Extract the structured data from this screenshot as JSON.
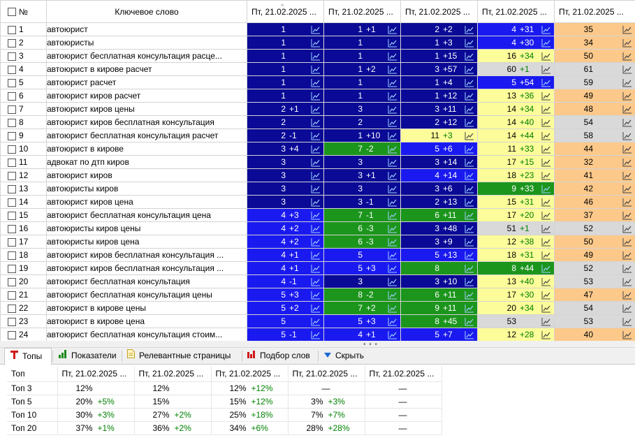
{
  "grid": {
    "header": {
      "num": "№",
      "keyword": "Ключевое слово",
      "dates": [
        "Пт, 21.02.2025 ...",
        "Пт, 21.02.2025 ...",
        "Пт, 21.02.2025 ...",
        "Пт, 21.02.2025 ...",
        "Пт, 21.02.2025 ..."
      ],
      "sort_indicator": "^"
    },
    "colors": {
      "navy": "#0a0a96",
      "blue": "#1a1af0",
      "green": "#1c951c",
      "yellow": "#fcfc9a",
      "gray": "#d9d9d9",
      "orange": "#fcc98b"
    },
    "rows": [
      {
        "n": "1",
        "kw": "автоюрист",
        "cells": [
          [
            "1",
            "",
            "navy"
          ],
          [
            "1",
            "+1",
            "navy"
          ],
          [
            "2",
            "+2",
            "navy"
          ],
          [
            "4",
            "+31",
            "blue"
          ],
          [
            "35",
            "",
            "orange"
          ]
        ]
      },
      {
        "n": "2",
        "kw": "автоюристы",
        "cells": [
          [
            "1",
            "",
            "navy"
          ],
          [
            "1",
            "",
            "navy"
          ],
          [
            "1",
            "+3",
            "navy"
          ],
          [
            "4",
            "+30",
            "blue"
          ],
          [
            "34",
            "",
            "orange"
          ]
        ]
      },
      {
        "n": "3",
        "kw": "автоюрист  бесплатная консультация расце...",
        "cells": [
          [
            "1",
            "",
            "navy"
          ],
          [
            "1",
            "",
            "navy"
          ],
          [
            "1",
            "+15",
            "navy"
          ],
          [
            "16",
            "+34",
            "yellow"
          ],
          [
            "50",
            "",
            "orange"
          ]
        ]
      },
      {
        "n": "4",
        "kw": "автоюрист в кирове расчет",
        "cells": [
          [
            "1",
            "",
            "navy"
          ],
          [
            "1",
            "+2",
            "navy"
          ],
          [
            "3",
            "+57",
            "navy"
          ],
          [
            "60",
            "+1",
            "gray"
          ],
          [
            "61",
            "",
            "gray"
          ]
        ]
      },
      {
        "n": "5",
        "kw": "автоюрист расчет",
        "cells": [
          [
            "1",
            "",
            "navy"
          ],
          [
            "1",
            "",
            "navy"
          ],
          [
            "1",
            "+4",
            "navy"
          ],
          [
            "5",
            "+54",
            "blue"
          ],
          [
            "59",
            "",
            "gray"
          ]
        ]
      },
      {
        "n": "6",
        "kw": "автоюрист киров расчет",
        "cells": [
          [
            "1",
            "",
            "navy"
          ],
          [
            "1",
            "",
            "navy"
          ],
          [
            "1",
            "+12",
            "navy"
          ],
          [
            "13",
            "+36",
            "yellow"
          ],
          [
            "49",
            "",
            "orange"
          ]
        ]
      },
      {
        "n": "7",
        "kw": "автоюрист киров цены",
        "cells": [
          [
            "2",
            "+1",
            "navy"
          ],
          [
            "3",
            "",
            "navy"
          ],
          [
            "3",
            "+11",
            "navy"
          ],
          [
            "14",
            "+34",
            "yellow"
          ],
          [
            "48",
            "",
            "orange"
          ]
        ]
      },
      {
        "n": "8",
        "kw": "автоюрист киров бесплатная консультация",
        "cells": [
          [
            "2",
            "",
            "navy"
          ],
          [
            "2",
            "",
            "navy"
          ],
          [
            "2",
            "+12",
            "navy"
          ],
          [
            "14",
            "+40",
            "yellow"
          ],
          [
            "54",
            "",
            "gray"
          ]
        ]
      },
      {
        "n": "9",
        "kw": "автоюрист  бесплатная консультация расчет",
        "cells": [
          [
            "2",
            "-1",
            "navy"
          ],
          [
            "1",
            "+10",
            "navy"
          ],
          [
            "11",
            "+3",
            "yellow"
          ],
          [
            "14",
            "+44",
            "yellow"
          ],
          [
            "58",
            "",
            "gray"
          ]
        ]
      },
      {
        "n": "10",
        "kw": "автоюрист в кирове",
        "cells": [
          [
            "3",
            "+4",
            "navy"
          ],
          [
            "7",
            "-2",
            "green"
          ],
          [
            "5",
            "+6",
            "blue"
          ],
          [
            "11",
            "+33",
            "yellow"
          ],
          [
            "44",
            "",
            "orange"
          ]
        ]
      },
      {
        "n": "11",
        "kw": "адвокат по дтп киров",
        "cells": [
          [
            "3",
            "",
            "navy"
          ],
          [
            "3",
            "",
            "navy"
          ],
          [
            "3",
            "+14",
            "navy"
          ],
          [
            "17",
            "+15",
            "yellow"
          ],
          [
            "32",
            "",
            "orange"
          ]
        ]
      },
      {
        "n": "12",
        "kw": "автоюрист киров",
        "cells": [
          [
            "3",
            "",
            "navy"
          ],
          [
            "3",
            "+1",
            "navy"
          ],
          [
            "4",
            "+14",
            "blue"
          ],
          [
            "18",
            "+23",
            "yellow"
          ],
          [
            "41",
            "",
            "orange"
          ]
        ]
      },
      {
        "n": "13",
        "kw": "автоюристы киров",
        "cells": [
          [
            "3",
            "",
            "navy"
          ],
          [
            "3",
            "",
            "navy"
          ],
          [
            "3",
            "+6",
            "navy"
          ],
          [
            "9",
            "+33",
            "green"
          ],
          [
            "42",
            "",
            "orange"
          ]
        ]
      },
      {
        "n": "14",
        "kw": "автоюрист киров цена",
        "cells": [
          [
            "3",
            "",
            "navy"
          ],
          [
            "3",
            "-1",
            "navy"
          ],
          [
            "2",
            "+13",
            "navy"
          ],
          [
            "15",
            "+31",
            "yellow"
          ],
          [
            "46",
            "",
            "orange"
          ]
        ]
      },
      {
        "n": "15",
        "kw": "автоюрист  бесплатная консультация цена",
        "cells": [
          [
            "4",
            "+3",
            "blue"
          ],
          [
            "7",
            "-1",
            "green"
          ],
          [
            "6",
            "+11",
            "green"
          ],
          [
            "17",
            "+20",
            "yellow"
          ],
          [
            "37",
            "",
            "orange"
          ]
        ]
      },
      {
        "n": "16",
        "kw": "автоюристы киров цены",
        "cells": [
          [
            "4",
            "+2",
            "blue"
          ],
          [
            "6",
            "-3",
            "green"
          ],
          [
            "3",
            "+48",
            "navy"
          ],
          [
            "51",
            "+1",
            "gray"
          ],
          [
            "52",
            "",
            "gray"
          ]
        ]
      },
      {
        "n": "17",
        "kw": "автоюристы киров цена",
        "cells": [
          [
            "4",
            "+2",
            "blue"
          ],
          [
            "6",
            "-3",
            "green"
          ],
          [
            "3",
            "+9",
            "navy"
          ],
          [
            "12",
            "+38",
            "yellow"
          ],
          [
            "50",
            "",
            "orange"
          ]
        ]
      },
      {
        "n": "18",
        "kw": "автоюрист киров бесплатная консультация ...",
        "cells": [
          [
            "4",
            "+1",
            "blue"
          ],
          [
            "5",
            "",
            "blue"
          ],
          [
            "5",
            "+13",
            "blue"
          ],
          [
            "18",
            "+31",
            "yellow"
          ],
          [
            "49",
            "",
            "orange"
          ]
        ]
      },
      {
        "n": "19",
        "kw": "автоюрист киров бесплатная консультация ...",
        "cells": [
          [
            "4",
            "+1",
            "blue"
          ],
          [
            "5",
            "+3",
            "blue"
          ],
          [
            "8",
            "",
            "green"
          ],
          [
            "8",
            "+44",
            "green"
          ],
          [
            "52",
            "",
            "gray"
          ]
        ]
      },
      {
        "n": "20",
        "kw": "автоюрист  бесплатная консультация",
        "cells": [
          [
            "4",
            "-1",
            "blue"
          ],
          [
            "3",
            "",
            "navy"
          ],
          [
            "3",
            "+10",
            "navy"
          ],
          [
            "13",
            "+40",
            "yellow"
          ],
          [
            "53",
            "",
            "gray"
          ]
        ]
      },
      {
        "n": "21",
        "kw": "автоюрист  бесплатная консультация цены",
        "cells": [
          [
            "5",
            "+3",
            "blue"
          ],
          [
            "8",
            "-2",
            "green"
          ],
          [
            "6",
            "+11",
            "green"
          ],
          [
            "17",
            "+30",
            "yellow"
          ],
          [
            "47",
            "",
            "orange"
          ]
        ]
      },
      {
        "n": "22",
        "kw": "автоюрист в кирове цены",
        "cells": [
          [
            "5",
            "+2",
            "blue"
          ],
          [
            "7",
            "+2",
            "green"
          ],
          [
            "9",
            "+11",
            "green"
          ],
          [
            "20",
            "+34",
            "yellow"
          ],
          [
            "54",
            "",
            "gray"
          ]
        ]
      },
      {
        "n": "23",
        "kw": "автоюрист в кирове цена",
        "cells": [
          [
            "5",
            "",
            "blue"
          ],
          [
            "5",
            "+3",
            "blue"
          ],
          [
            "8",
            "+45",
            "green"
          ],
          [
            "53",
            "",
            "gray"
          ],
          [
            "53",
            "",
            "gray"
          ]
        ]
      },
      {
        "n": "24",
        "kw": "автоюрист  бесплатная консультация стоим...",
        "cells": [
          [
            "5",
            "-1",
            "blue"
          ],
          [
            "4",
            "+1",
            "blue"
          ],
          [
            "5",
            "+7",
            "blue"
          ],
          [
            "12",
            "+28",
            "yellow"
          ],
          [
            "40",
            "",
            "orange"
          ]
        ]
      }
    ]
  },
  "splitter": {
    "grip": "• • •"
  },
  "tabs": [
    {
      "label": "Топы",
      "icon": "top-icon",
      "active": true
    },
    {
      "label": "Показатели",
      "icon": "bar-chart-icon",
      "active": false
    },
    {
      "label": "Релевантные страницы",
      "icon": "document-icon",
      "active": false
    },
    {
      "label": "Подбор слов",
      "icon": "red-bar-chart-icon",
      "active": false
    },
    {
      "label": "Скрыть",
      "icon": "triangle-down-icon",
      "active": false
    }
  ],
  "tops": {
    "header": {
      "label": "Топ",
      "dates": [
        "Пт, 21.02.2025 ...",
        "Пт, 21.02.2025 ...",
        "Пт, 21.02.2025 ...",
        "Пт, 21.02.2025 ...",
        "Пт, 21.02.2025 ..."
      ]
    },
    "rows": [
      {
        "label": "Топ 3",
        "cells": [
          [
            "12%",
            ""
          ],
          [
            "12%",
            ""
          ],
          [
            "12%",
            "+12%"
          ],
          [
            "—",
            ""
          ],
          [
            "—",
            ""
          ]
        ]
      },
      {
        "label": "Топ 5",
        "cells": [
          [
            "20%",
            "+5%"
          ],
          [
            "15%",
            ""
          ],
          [
            "15%",
            "+12%"
          ],
          [
            "3%",
            "+3%"
          ],
          [
            "—",
            ""
          ]
        ]
      },
      {
        "label": "Топ 10",
        "cells": [
          [
            "30%",
            "+3%"
          ],
          [
            "27%",
            "+2%"
          ],
          [
            "25%",
            "+18%"
          ],
          [
            "7%",
            "+7%"
          ],
          [
            "—",
            ""
          ]
        ]
      },
      {
        "label": "Топ 20",
        "cells": [
          [
            "37%",
            "+1%"
          ],
          [
            "36%",
            "+2%"
          ],
          [
            "34%",
            "+6%"
          ],
          [
            "28%",
            "+28%"
          ],
          [
            "—",
            ""
          ]
        ]
      }
    ]
  }
}
